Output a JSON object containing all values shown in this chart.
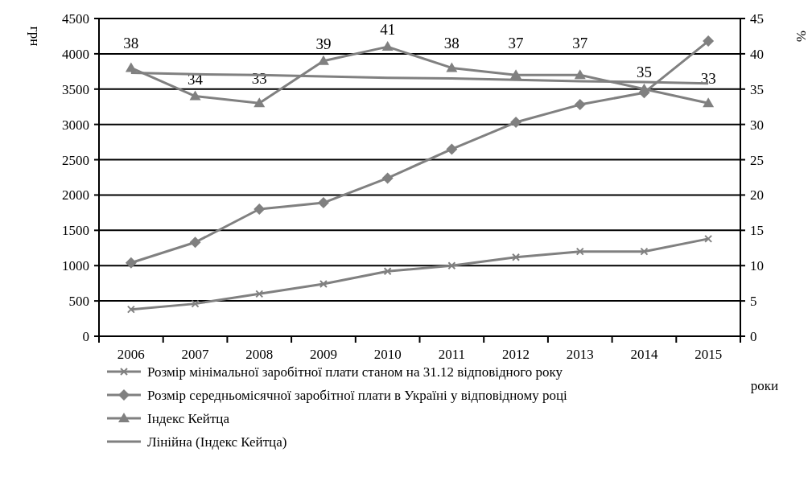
{
  "chart_data": {
    "type": "line",
    "xlabel": "роки",
    "ylabel": "грн",
    "y2label": "%",
    "categories": [
      "2006",
      "2007",
      "2008",
      "2009",
      "2010",
      "2011",
      "2012",
      "2013",
      "2014",
      "2015"
    ],
    "series": [
      {
        "name": "Розмір мінімальної заробітної плати станом на 31.12 відповідного року",
        "color": "#808080",
        "marker": "cross",
        "values": [
          380,
          460,
          600,
          740,
          920,
          1000,
          1120,
          1200,
          1200,
          1380
        ]
      },
      {
        "name": "Розмір середньомісячної заробітної плати в Україні у відповідному році",
        "color": "#808080",
        "marker": "diamond",
        "values": [
          1040,
          1330,
          1800,
          1890,
          2240,
          2650,
          3030,
          3280,
          3450,
          4180
        ]
      },
      {
        "name": "Індекс Кейтца",
        "color": "#808080",
        "marker": "triangle",
        "axis": "y2",
        "data_labels": true,
        "values": [
          38,
          34,
          33,
          39,
          41,
          38,
          37,
          37,
          35,
          33
        ]
      },
      {
        "name": "Лінійна (Індекс Кейтца)",
        "color": "#808080",
        "marker": "none",
        "axis": "y2",
        "values": [
          37.3,
          37.1,
          37.0,
          36.8,
          36.6,
          36.5,
          36.3,
          36.1,
          36.0,
          35.8
        ]
      }
    ],
    "ylim": [
      0,
      4500
    ],
    "yticks": [
      0,
      500,
      1000,
      1500,
      2000,
      2500,
      3000,
      3500,
      4000,
      4500
    ],
    "y2lim": [
      0,
      45
    ],
    "y2ticks": [
      0,
      5,
      10,
      15,
      20,
      25,
      30,
      35,
      40,
      45
    ],
    "grid": "y",
    "legend": "bottom"
  }
}
